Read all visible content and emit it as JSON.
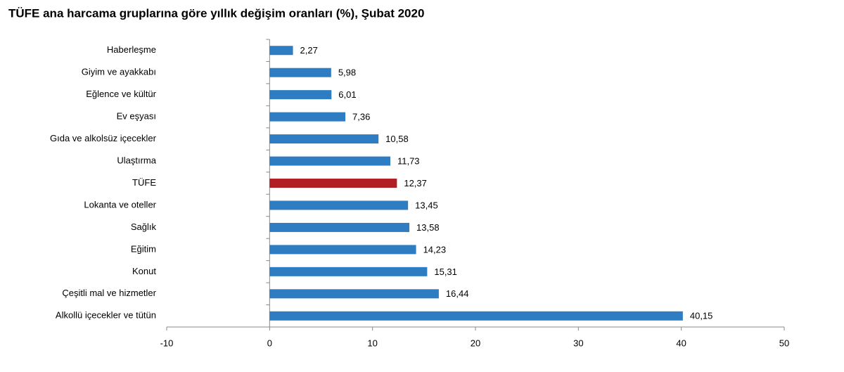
{
  "chart_data": {
    "type": "hbar",
    "title": "TÜFE ana harcama gruplarına göre yıllık değişim oranları (%), Şubat 2020",
    "categories": [
      "Haberleşme",
      "Giyim ve ayakkabı",
      "Eğlence ve kültür",
      "Ev eşyası",
      "Gıda ve alkolsüz içecekler",
      "Ulaştırma",
      "TÜFE",
      "Lokanta ve oteller",
      "Sağlık",
      "Eğitim",
      "Konut",
      "Çeşitli mal ve hizmetler",
      "Alkollü içecekler ve tütün"
    ],
    "values": [
      2.27,
      5.98,
      6.01,
      7.36,
      10.58,
      11.73,
      12.37,
      13.45,
      13.58,
      14.23,
      15.31,
      16.44,
      40.15
    ],
    "value_labels": [
      "2,27",
      "5,98",
      "6,01",
      "7,36",
      "10,58",
      "11,73",
      "12,37",
      "13,45",
      "13,58",
      "14,23",
      "15,31",
      "16,44",
      "40,15"
    ],
    "colors": [
      "#2e7cc1",
      "#2e7cc1",
      "#2e7cc1",
      "#2e7cc1",
      "#2e7cc1",
      "#2e7cc1",
      "#b11f24",
      "#2e7cc1",
      "#2e7cc1",
      "#2e7cc1",
      "#2e7cc1",
      "#2e7cc1",
      "#2e7cc1"
    ],
    "xlim": [
      -10,
      50
    ],
    "xticks": [
      -10,
      0,
      10,
      20,
      30,
      40,
      50
    ]
  }
}
